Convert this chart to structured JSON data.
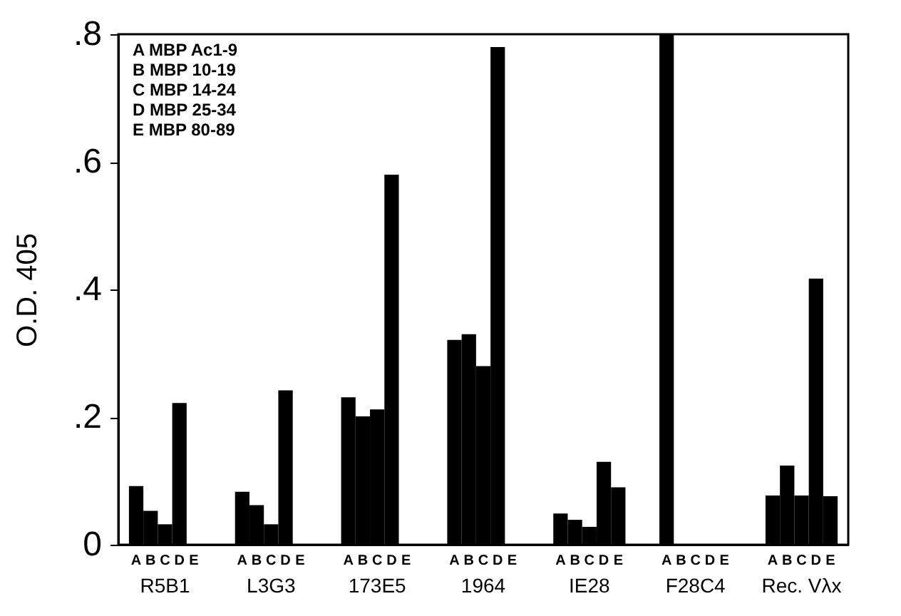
{
  "chart_data": {
    "type": "bar",
    "ylabel": "O.D. 405",
    "categories": [
      "R5B1",
      "L3G3",
      "173E5",
      "1964",
      "IE28",
      "F28C4",
      "Rec. Vλx"
    ],
    "series": [
      {
        "name": "A",
        "color": "#000000",
        "values": [
          0.092,
          0.083,
          0.231,
          0.321,
          0.049,
          0.8,
          0.077
        ]
      },
      {
        "name": "B",
        "color": "#000000",
        "values": [
          0.053,
          0.062,
          0.201,
          0.33,
          0.039,
          0,
          0.124
        ]
      },
      {
        "name": "C",
        "color": "#000000",
        "values": [
          0.032,
          0.032,
          0.212,
          0.28,
          0.028,
          0,
          0.077
        ]
      },
      {
        "name": "D",
        "color": "#000000",
        "values": [
          0.222,
          0.242,
          0.58,
          0.78,
          0.13,
          0,
          0.417
        ]
      },
      {
        "name": "E",
        "color": "#000000",
        "values": [
          0,
          0,
          0,
          0,
          0.09,
          0,
          0.076
        ]
      }
    ],
    "ylim": [
      0,
      0.8
    ],
    "yticks": [
      0,
      {
        "value": 0.2,
        "label": ".2"
      },
      {
        "value": 0.4,
        "label": ".4"
      },
      {
        "value": 0.6,
        "label": ".6"
      },
      {
        "value": 0.8,
        "label": ".8"
      }
    ],
    "grid": false,
    "annotations": [
      "A MBP Ac1-9",
      "B MBP 10-19",
      "C MBP 14-24",
      "D MBP 25-34",
      "E MBP 80-89"
    ]
  }
}
